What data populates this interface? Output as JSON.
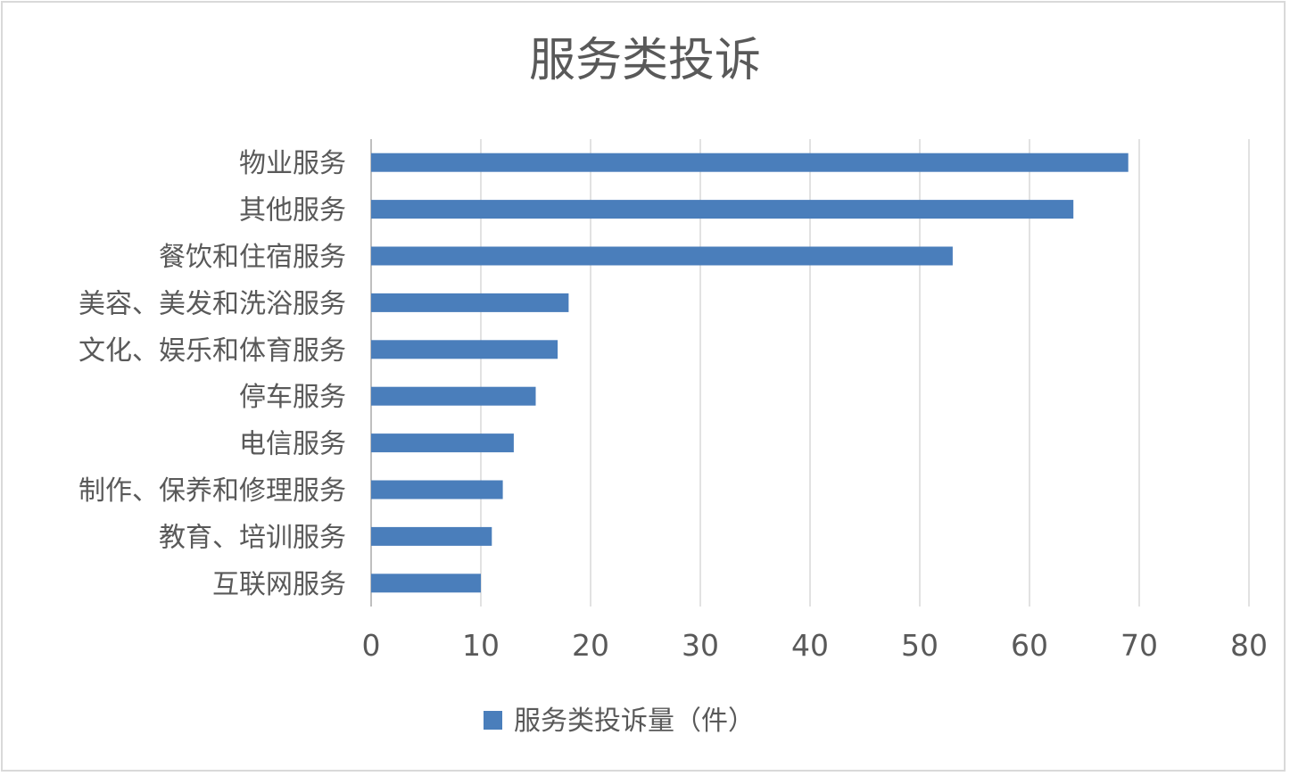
{
  "chart_data": {
    "type": "bar",
    "orientation": "horizontal",
    "title": "服务类投诉",
    "categories": [
      "物业服务",
      "其他服务",
      "餐饮和住宿服务",
      "美容、美发和洗浴服务",
      "文化、娱乐和体育服务",
      "停车服务",
      "电信服务",
      "制作、保养和修理服务",
      "教育、培训服务",
      "互联网服务"
    ],
    "series": [
      {
        "name": "服务类投诉量（件）",
        "values": [
          69,
          64,
          53,
          18,
          17,
          15,
          13,
          12,
          11,
          10
        ],
        "color": "#4a7ebb"
      }
    ],
    "xlim": [
      0,
      80
    ],
    "xticks": [
      0,
      10,
      20,
      30,
      40,
      50,
      60,
      70,
      80
    ],
    "grid": "vertical",
    "legend": "bottom"
  }
}
